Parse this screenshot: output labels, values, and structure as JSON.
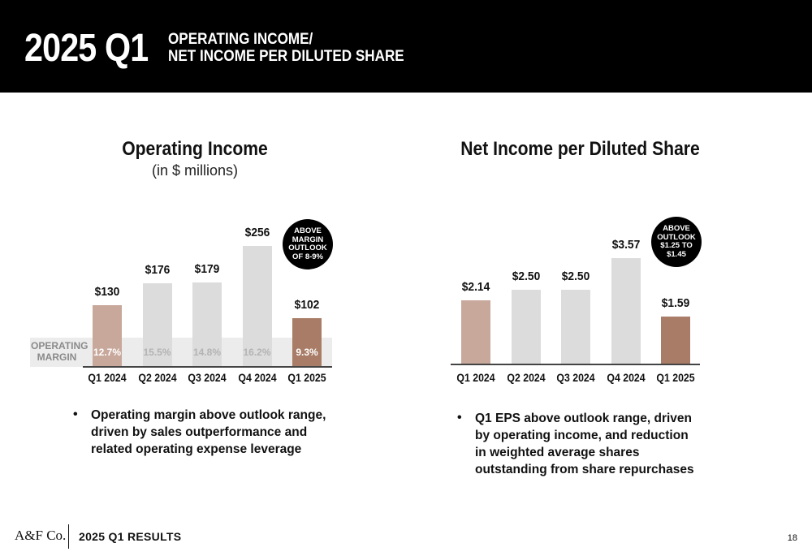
{
  "header": {
    "big_title": "2025 Q1",
    "sub_line1": "OPERATING INCOME/",
    "sub_line2": "NET INCOME PER DILUTED SHARE"
  },
  "colors": {
    "header_bg": "#000000",
    "bar_light": "#c8a89b",
    "bar_grey": "#dcdcdc",
    "bar_accent": "#a87c66"
  },
  "left_chart": {
    "title": "Operating Income",
    "subtitle": "(in $ millions)",
    "margin_label": "OPERATING MARGIN",
    "margins": [
      "12.7%",
      "15.5%",
      "14.8%",
      "16.2%",
      "9.3%"
    ],
    "badge": "ABOVE\nMARGIN\nOUTLOOK\nOF 8-9%",
    "bullet": "Operating margin above outlook range, driven by sales outperformance and related operating expense leverage"
  },
  "right_chart": {
    "title": "Net Income per Diluted Share",
    "badge": "ABOVE\nOUTLOOK\n$1.25 TO\n$1.45",
    "bullet": "Q1 EPS above outlook range, driven by operating income, and reduction in weighted average shares outstanding from share repurchases"
  },
  "chart_data": [
    {
      "type": "bar",
      "title": "Operating Income",
      "subtitle": "(in $ millions)",
      "categories": [
        "Q1 2024",
        "Q2 2024",
        "Q3 2024",
        "Q4 2024",
        "Q1 2025"
      ],
      "values": [
        130,
        176,
        179,
        256,
        102
      ],
      "labels": [
        "$130",
        "$176",
        "$179",
        "$256",
        "$102"
      ],
      "ylim": [
        0,
        256
      ]
    },
    {
      "type": "bar",
      "title": "Net Income per Diluted Share",
      "categories": [
        "Q1 2024",
        "Q2 2024",
        "Q3 2024",
        "Q4 2024",
        "Q1 2025"
      ],
      "values": [
        2.14,
        2.5,
        2.5,
        3.57,
        1.59
      ],
      "labels": [
        "$2.14",
        "$2.50",
        "$2.50",
        "$3.57",
        "$1.59"
      ],
      "ylim": [
        0,
        3.57
      ]
    }
  ],
  "footer": {
    "logo": "A&F Co.",
    "text": "2025 Q1 RESULTS",
    "page": "18"
  }
}
